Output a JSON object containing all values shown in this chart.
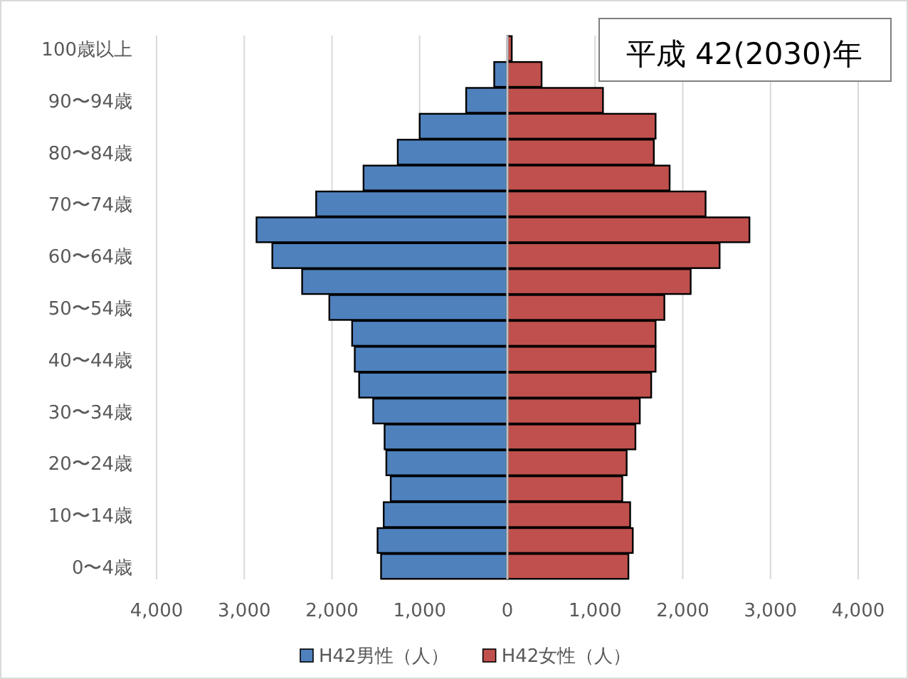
{
  "chart_data": {
    "type": "bar",
    "orientation": "horizontal",
    "title": "平成 42(2030)年",
    "categories": [
      "100歳以上",
      null,
      "90〜94歳",
      null,
      "80〜84歳",
      null,
      "70〜74歳",
      null,
      "60〜64歳",
      null,
      "50〜54歳",
      null,
      "40〜44歳",
      null,
      "30〜34歳",
      null,
      "20〜24歳",
      null,
      "10〜14歳",
      null,
      "0〜4歳"
    ],
    "series": [
      {
        "name": "H42男性（人）",
        "color": "#4f81bd",
        "values": [
          null,
          -150,
          -470,
          -1000,
          -1250,
          -1640,
          -2180,
          -2860,
          -2680,
          -2340,
          -2030,
          -1770,
          -1740,
          -1690,
          -1530,
          -1400,
          -1380,
          -1330,
          -1410,
          -1480,
          -1440
        ]
      },
      {
        "name": "H42女性（人）",
        "color": "#c0504d",
        "values": [
          50,
          390,
          1090,
          1690,
          1670,
          1850,
          2260,
          2760,
          2420,
          2090,
          1790,
          1690,
          1690,
          1640,
          1510,
          1460,
          1360,
          1310,
          1400,
          1430,
          1380
        ]
      }
    ],
    "xlim": [
      -4000,
      4000
    ],
    "xticks": [
      {
        "value": -4000,
        "label": "4,000"
      },
      {
        "value": -3000,
        "label": "3,000"
      },
      {
        "value": -2000,
        "label": "2,000"
      },
      {
        "value": -1000,
        "label": "1,000"
      },
      0,
      {
        "value": 1000,
        "label": "1,000"
      },
      {
        "value": 2000,
        "label": "2,000"
      },
      {
        "value": 3000,
        "label": "3,000"
      },
      {
        "value": 4000,
        "label": "4,000"
      }
    ],
    "grid": "x",
    "legend": "bottom",
    "stacked": true
  }
}
